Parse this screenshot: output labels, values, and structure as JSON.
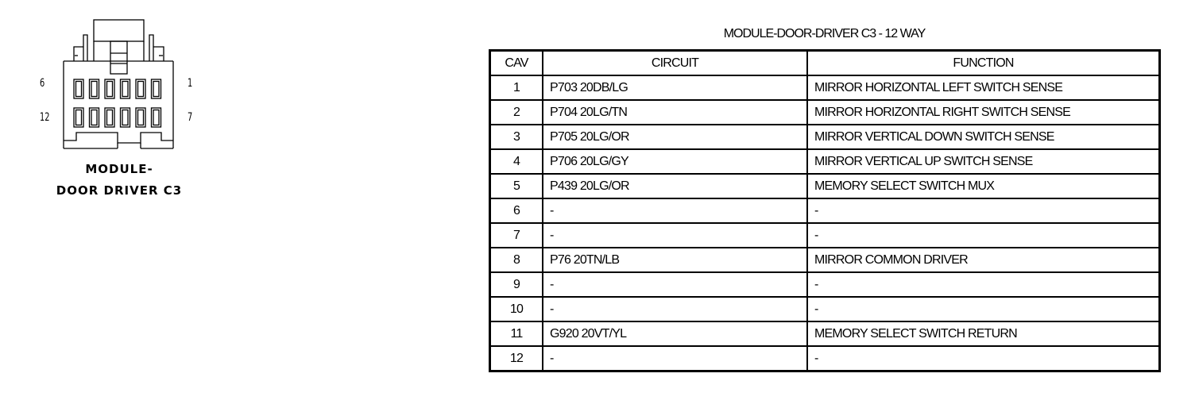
{
  "connector": {
    "caption_line1": "MODULE-",
    "caption_line2": "DOOR DRIVER C3",
    "pin_labels": {
      "top_left": "6",
      "top_right": "1",
      "bottom_left": "12",
      "bottom_right": "7"
    }
  },
  "table": {
    "title": "MODULE-DOOR-DRIVER C3 - 12 WAY",
    "headers": [
      "CAV",
      "CIRCUIT",
      "FUNCTION"
    ],
    "rows": [
      [
        "1",
        "P703 20DB/LG",
        "MIRROR HORIZONTAL LEFT SWITCH SENSE"
      ],
      [
        "2",
        "P704 20LG/TN",
        "MIRROR HORIZONTAL RIGHT SWITCH SENSE"
      ],
      [
        "3",
        "P705 20LG/OR",
        "MIRROR VERTICAL DOWN SWITCH SENSE"
      ],
      [
        "4",
        "P706 20LG/GY",
        "MIRROR VERTICAL UP SWITCH SENSE"
      ],
      [
        "5",
        "P439 20LG/OR",
        "MEMORY SELECT SWITCH MUX"
      ],
      [
        "6",
        "-",
        "-"
      ],
      [
        "7",
        "-",
        "-"
      ],
      [
        "8",
        "P76 20TN/LB",
        "MIRROR COMMON DRIVER"
      ],
      [
        "9",
        "-",
        "-"
      ],
      [
        "10",
        "-",
        "-"
      ],
      [
        "11",
        "G920 20VT/YL",
        "MEMORY SELECT SWITCH RETURN"
      ],
      [
        "12",
        "-",
        "-"
      ]
    ]
  }
}
